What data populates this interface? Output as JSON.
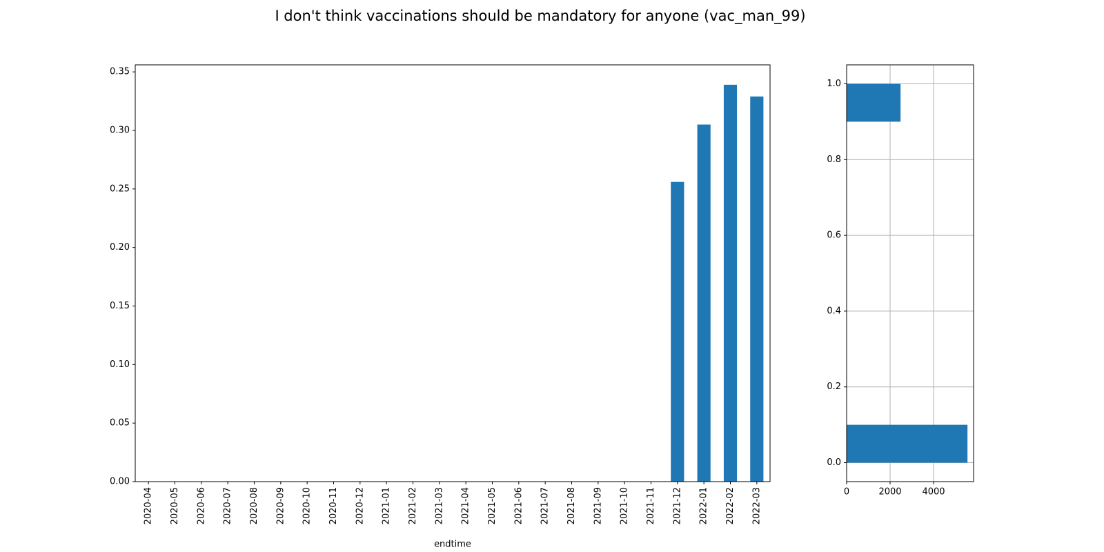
{
  "chart_data": [
    {
      "type": "bar",
      "title": "I don't think vaccinations should be mandatory for anyone (vac_man_99)",
      "xlabel": "endtime",
      "categories": [
        "2020-04",
        "2020-05",
        "2020-06",
        "2020-07",
        "2020-08",
        "2020-09",
        "2020-10",
        "2020-11",
        "2020-12",
        "2021-01",
        "2021-02",
        "2021-03",
        "2021-04",
        "2021-05",
        "2021-06",
        "2021-07",
        "2021-08",
        "2021-09",
        "2021-10",
        "2021-11",
        "2021-12",
        "2022-01",
        "2022-02",
        "2022-03"
      ],
      "values": [
        0,
        0,
        0,
        0,
        0,
        0,
        0,
        0,
        0,
        0,
        0,
        0,
        0,
        0,
        0,
        0,
        0,
        0,
        0,
        0,
        0.256,
        0.305,
        0.339,
        0.329
      ],
      "color": "#1f77b4",
      "ylim": [
        0,
        0.356
      ],
      "yticks": [
        {
          "value": 0,
          "label": "0.00"
        },
        {
          "value": 0.05,
          "label": "0.05"
        },
        {
          "value": 0.1,
          "label": "0.10"
        },
        {
          "value": 0.15,
          "label": "0.15"
        },
        {
          "value": 0.2,
          "label": "0.20"
        },
        {
          "value": 0.25,
          "label": "0.25"
        },
        {
          "value": 0.3,
          "label": "0.30"
        },
        {
          "value": 0.35,
          "label": "0.35"
        }
      ],
      "grid": false
    },
    {
      "type": "histogram",
      "orientation": "horizontal",
      "bins": [
        0,
        0.1,
        0.2,
        0.3,
        0.4,
        0.5,
        0.6,
        0.7,
        0.8,
        0.9,
        1.0
      ],
      "values": [
        5560,
        0,
        0,
        0,
        0,
        0,
        0,
        0,
        0,
        2480
      ],
      "color": "#1f77b4",
      "xlim": [
        0,
        5841
      ],
      "xticks": [
        0,
        2000,
        4000
      ],
      "ylim": [
        -0.05,
        1.05
      ],
      "yticks": [
        {
          "value": 0,
          "label": "0.0"
        },
        {
          "value": 0.2,
          "label": "0.2"
        },
        {
          "value": 0.4,
          "label": "0.4"
        },
        {
          "value": 0.6,
          "label": "0.6"
        },
        {
          "value": 0.8,
          "label": "0.8"
        },
        {
          "value": 1.0,
          "label": "1.0"
        }
      ],
      "grid": true
    }
  ]
}
